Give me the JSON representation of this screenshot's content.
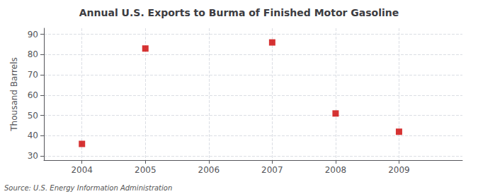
{
  "chart_data": {
    "type": "scatter",
    "title": "Annual U.S. Exports to Burma of Finished Motor Gasoline",
    "ylabel": "Thousand Barrels",
    "annotations": [
      "Source: U.S. Energy Information Administration"
    ],
    "x": [
      2004,
      2005,
      2006,
      2007,
      2008,
      2009
    ],
    "values": [
      36,
      83,
      null,
      86,
      51,
      42
    ],
    "color": "#cc0000",
    "marker": "square",
    "xlim": [
      2003.4,
      2010.0
    ],
    "xticks": [
      2004,
      2005,
      2006,
      2007,
      2008,
      2009
    ],
    "ylim": [
      28,
      93
    ],
    "yticks": [
      30,
      40,
      50,
      60,
      70,
      80,
      90
    ],
    "grid": true
  }
}
